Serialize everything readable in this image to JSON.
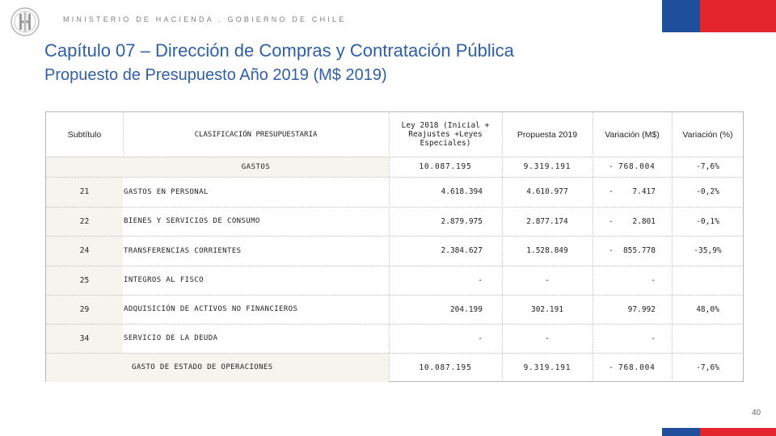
{
  "header": {
    "ministry": "MINISTERIO DE HACIENDA . GOBIERNO DE CHILE",
    "title": "Capítulo 07 – Dirección de Compras y Contratación Pública",
    "subtitle": "Propuesto de Presupuesto Año 2019 (M$ 2019)"
  },
  "colors": {
    "title": "#2f5fa8",
    "flag_blue": "#1f4e9c",
    "flag_red": "#e4252e",
    "row_shade": "#f5f4ee"
  },
  "table": {
    "headers": {
      "subtitulo": "Subtítulo",
      "clasificacion": "CLASIFICACIÓN PRESUPUESTARIA",
      "ley_line1": "Ley 2018 (Inicial +",
      "ley_line2": "Reajustes +Leyes",
      "ley_line3": "Especiales)",
      "propuesta": "Propuesta 2019",
      "variacion_m": "Variación (M$)",
      "variacion_p": "Variación (%)"
    },
    "total_gastos": {
      "label": "GASTOS",
      "ley": "10.087.195",
      "propuesta": "9.319.191",
      "var_sign": "-",
      "var_m": "768.004",
      "var_p": "-7,6%"
    },
    "rows": [
      {
        "sub": "21",
        "label": "GASTOS EN PERSONAL",
        "ley": "4.618.394",
        "propuesta": "4.610.977",
        "var_sign": "-",
        "var_m": "7.417",
        "var_p": "-0,2%"
      },
      {
        "sub": "22",
        "label": "BIENES Y SERVICIOS DE CONSUMO",
        "ley": "2.879.975",
        "propuesta": "2.877.174",
        "var_sign": "-",
        "var_m": "2.801",
        "var_p": "-0,1%"
      },
      {
        "sub": "24",
        "label": "TRANSFERENCIAS CORRIENTES",
        "ley": "2.384.627",
        "propuesta": "1.528.849",
        "var_sign": "-",
        "var_m": "855.778",
        "var_p": "-35,9%"
      },
      {
        "sub": "25",
        "label": "INTEGROS AL FISCO",
        "ley": "-",
        "propuesta": "-",
        "var_sign": "",
        "var_m": "-",
        "var_p": ""
      },
      {
        "sub": "29",
        "label": "ADQUISICIÓN DE ACTIVOS NO FINANCIEROS",
        "ley": "204.199",
        "propuesta": "302.191",
        "var_sign": "",
        "var_m": "97.992",
        "var_p": "48,0%"
      },
      {
        "sub": "34",
        "label": "SERVICIO DE LA DEUDA",
        "ley": "-",
        "propuesta": "-",
        "var_sign": "",
        "var_m": "-",
        "var_p": ""
      }
    ],
    "total_operaciones": {
      "label": "GASTO DE ESTADO DE OPERACIONES",
      "ley": "10.087.195",
      "propuesta": "9.319.191",
      "var_sign": "-",
      "var_m": "768.004",
      "var_p": "-7,6%"
    }
  },
  "page_number": "40"
}
